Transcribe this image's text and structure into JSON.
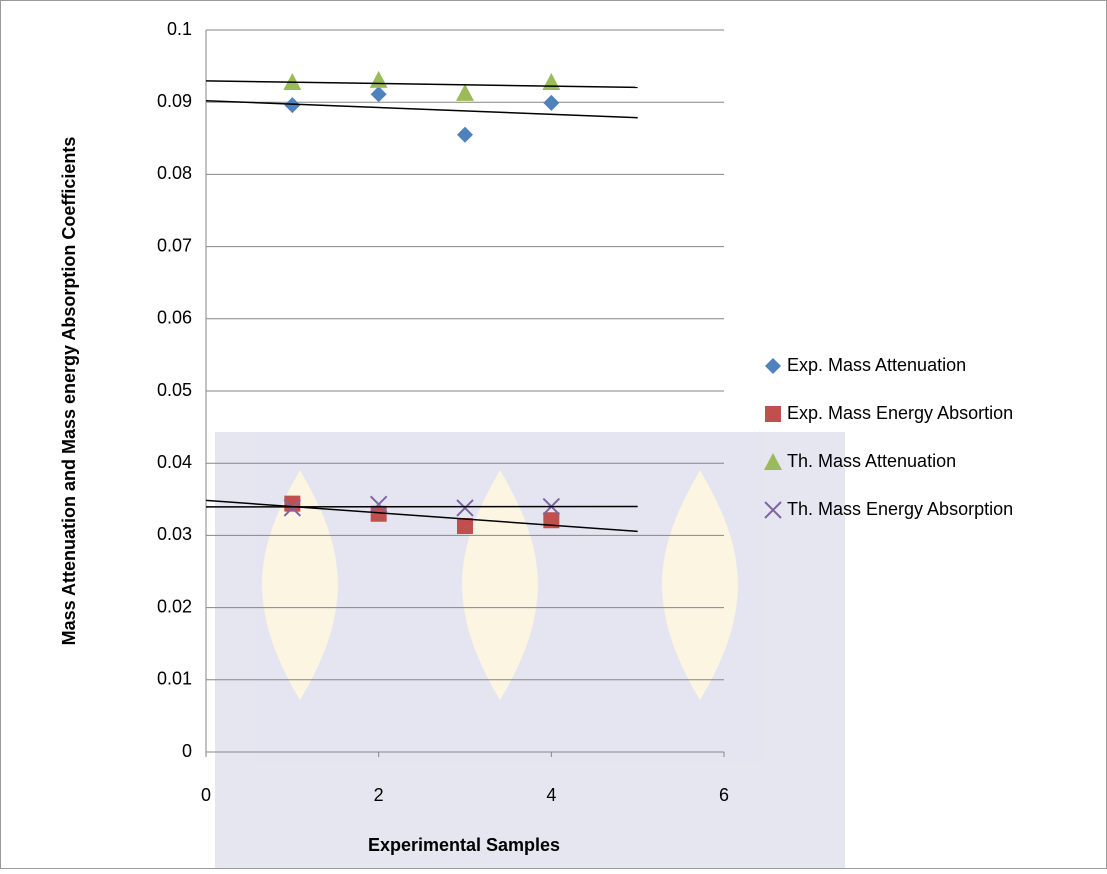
{
  "chart_data": {
    "type": "scatter",
    "x_label": "Experimental Samples",
    "y_label": "Mass Attenuation and Mass energy Absorption Coefficients",
    "x": [
      1,
      2,
      3,
      4
    ],
    "series": [
      {
        "name": "Exp. Mass Attenuation",
        "color": "#4f81bd",
        "marker": "diamond",
        "values": [
          0.0896,
          0.0911,
          0.0855,
          0.0899
        ]
      },
      {
        "name": "Exp. Mass Energy Absortion",
        "color": "#c0504d",
        "marker": "square",
        "values": [
          0.0344,
          0.033,
          0.0313,
          0.0321
        ]
      },
      {
        "name": "Th. Mass Attenuation",
        "color": "#9bbb59",
        "marker": "triangle",
        "values": [
          0.0928,
          0.0931,
          0.0913,
          0.0928
        ]
      },
      {
        "name": "Th. Mass Energy Absorption",
        "color": "#8064a2",
        "marker": "x",
        "values": [
          0.0338,
          0.0343,
          0.0338,
          0.034
        ]
      }
    ],
    "xlim": [
      0,
      6
    ],
    "xticks": [
      0,
      2,
      4,
      6
    ],
    "ylim": [
      0,
      0.1
    ],
    "yticks": [
      0,
      0.01,
      0.02,
      0.03,
      0.04,
      0.05,
      0.06,
      0.07,
      0.08,
      0.09,
      0.1
    ],
    "grid": true,
    "trendline": true,
    "legend": "right"
  }
}
